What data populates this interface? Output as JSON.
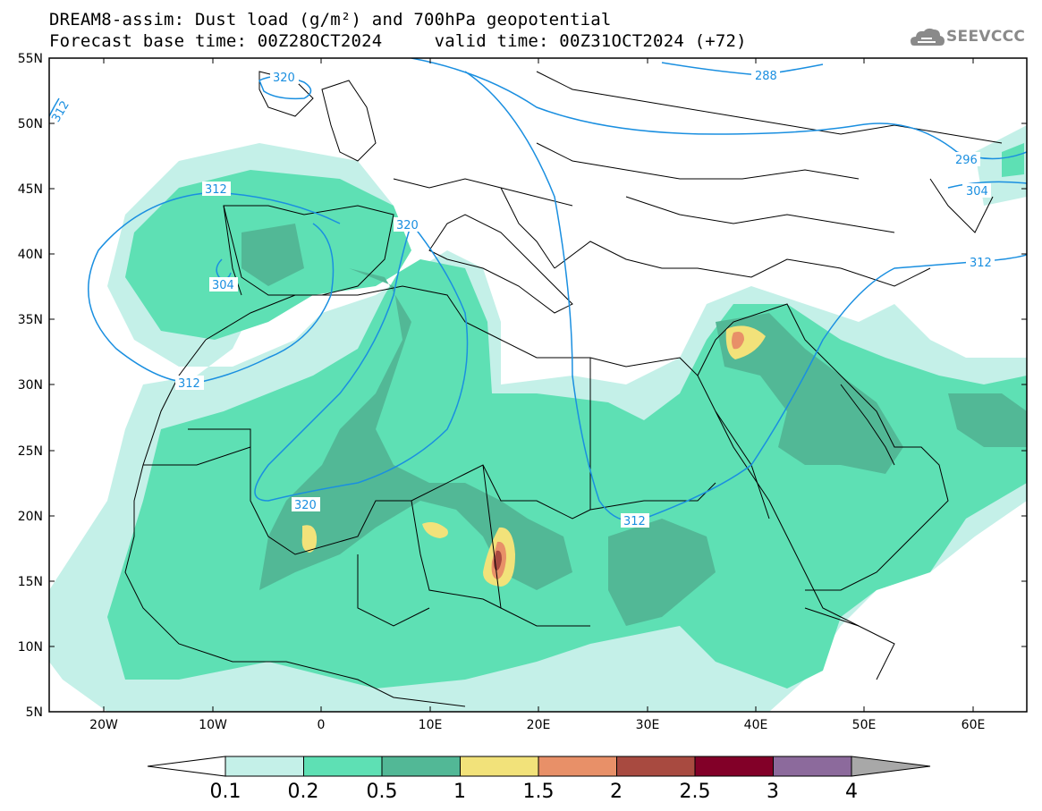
{
  "header": {
    "line1": "DREAM8-assim: Dust load (g/m²) and 700hPa geopotential",
    "line2": "Forecast base time: 00Z28OCT2024     valid time: 00Z31OCT2024 (+72)"
  },
  "logo": {
    "text": "SEEVCCC",
    "icon": "cloud-icon"
  },
  "map": {
    "lat_labels": [
      "55N",
      "50N",
      "45N",
      "40N",
      "35N",
      "30N",
      "25N",
      "20N",
      "15N",
      "10N",
      "5N"
    ],
    "lon_labels": [
      "20W",
      "10W",
      "0",
      "10E",
      "20E",
      "30E",
      "40E",
      "50E",
      "60E"
    ],
    "contour_labels": [
      "288",
      "296",
      "304",
      "312",
      "312",
      "312",
      "304",
      "312",
      "320",
      "320",
      "320",
      "312",
      "312"
    ]
  },
  "colorbar": {
    "labels": [
      "0.1",
      "0.2",
      "0.5",
      "1",
      "1.5",
      "2",
      "2.5",
      "3",
      "4"
    ],
    "colors": [
      "#c4f0e8",
      "#5ee0b4",
      "#52b896",
      "#f2e27a",
      "#e89068",
      "#a84a40",
      "#820028",
      "#8c6a9c"
    ],
    "under_color": "#ffffff",
    "over_color": "#a8a8a8"
  }
}
